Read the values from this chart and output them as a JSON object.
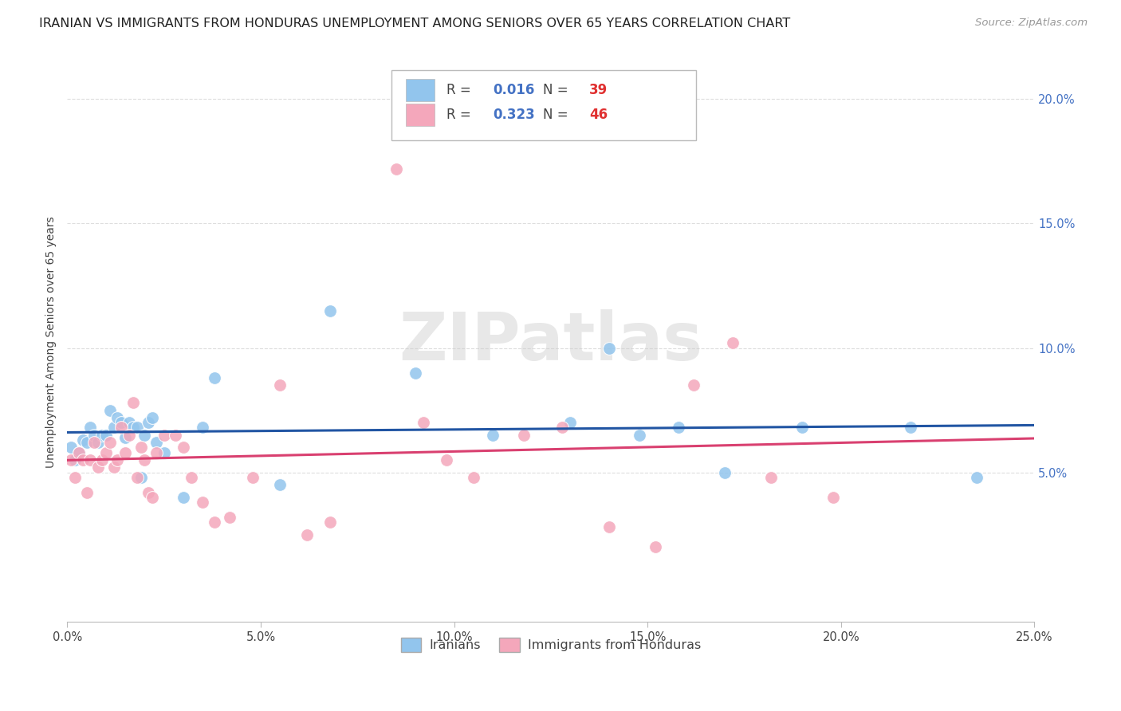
{
  "title": "IRANIAN VS IMMIGRANTS FROM HONDURAS UNEMPLOYMENT AMONG SENIORS OVER 65 YEARS CORRELATION CHART",
  "source": "Source: ZipAtlas.com",
  "ylabel": "Unemployment Among Seniors over 65 years",
  "xlim": [
    0.0,
    0.25
  ],
  "ylim": [
    -0.01,
    0.215
  ],
  "xticks": [
    0.0,
    0.05,
    0.1,
    0.15,
    0.2,
    0.25
  ],
  "yticks": [
    0.05,
    0.1,
    0.15,
    0.2
  ],
  "ytick_labels": [
    "5.0%",
    "10.0%",
    "15.0%",
    "20.0%"
  ],
  "xtick_labels": [
    "0.0%",
    "5.0%",
    "10.0%",
    "15.0%",
    "20.0%",
    "25.0%"
  ],
  "legend_iranians": "Iranians",
  "legend_honduras": "Immigrants from Honduras",
  "R_iranians": 0.016,
  "N_iranians": 39,
  "R_honduras": 0.323,
  "N_honduras": 46,
  "color_iranians": "#92C5ED",
  "color_honduras": "#F4A7BB",
  "line_color_iranians": "#2155A3",
  "line_color_honduras": "#D94070",
  "watermark": "ZIPatlas",
  "iranians_x": [
    0.001,
    0.002,
    0.003,
    0.004,
    0.005,
    0.006,
    0.007,
    0.008,
    0.009,
    0.01,
    0.011,
    0.012,
    0.013,
    0.014,
    0.015,
    0.016,
    0.017,
    0.018,
    0.019,
    0.02,
    0.021,
    0.022,
    0.023,
    0.025,
    0.03,
    0.035,
    0.038,
    0.055,
    0.068,
    0.09,
    0.11,
    0.13,
    0.14,
    0.148,
    0.158,
    0.17,
    0.19,
    0.218,
    0.235
  ],
  "iranians_y": [
    0.06,
    0.055,
    0.058,
    0.063,
    0.062,
    0.068,
    0.065,
    0.062,
    0.065,
    0.065,
    0.075,
    0.068,
    0.072,
    0.07,
    0.064,
    0.07,
    0.068,
    0.068,
    0.048,
    0.065,
    0.07,
    0.072,
    0.062,
    0.058,
    0.04,
    0.068,
    0.088,
    0.045,
    0.115,
    0.09,
    0.065,
    0.07,
    0.1,
    0.065,
    0.068,
    0.05,
    0.068,
    0.068,
    0.048
  ],
  "honduras_x": [
    0.001,
    0.002,
    0.003,
    0.004,
    0.005,
    0.006,
    0.007,
    0.008,
    0.009,
    0.01,
    0.011,
    0.012,
    0.013,
    0.014,
    0.015,
    0.016,
    0.017,
    0.018,
    0.019,
    0.02,
    0.021,
    0.022,
    0.023,
    0.025,
    0.028,
    0.03,
    0.032,
    0.035,
    0.038,
    0.042,
    0.048,
    0.055,
    0.062,
    0.068,
    0.085,
    0.092,
    0.098,
    0.105,
    0.118,
    0.128,
    0.14,
    0.152,
    0.162,
    0.172,
    0.182,
    0.198
  ],
  "honduras_y": [
    0.055,
    0.048,
    0.058,
    0.055,
    0.042,
    0.055,
    0.062,
    0.052,
    0.055,
    0.058,
    0.062,
    0.052,
    0.055,
    0.068,
    0.058,
    0.065,
    0.078,
    0.048,
    0.06,
    0.055,
    0.042,
    0.04,
    0.058,
    0.065,
    0.065,
    0.06,
    0.048,
    0.038,
    0.03,
    0.032,
    0.048,
    0.085,
    0.025,
    0.03,
    0.172,
    0.07,
    0.055,
    0.048,
    0.065,
    0.068,
    0.028,
    0.02,
    0.085,
    0.102,
    0.048,
    0.04
  ],
  "background_color": "#FFFFFF",
  "grid_color": "#DDDDDD",
  "title_fontsize": 11.5,
  "axis_label_fontsize": 10,
  "tick_fontsize": 10.5,
  "legend_fontsize": 12
}
